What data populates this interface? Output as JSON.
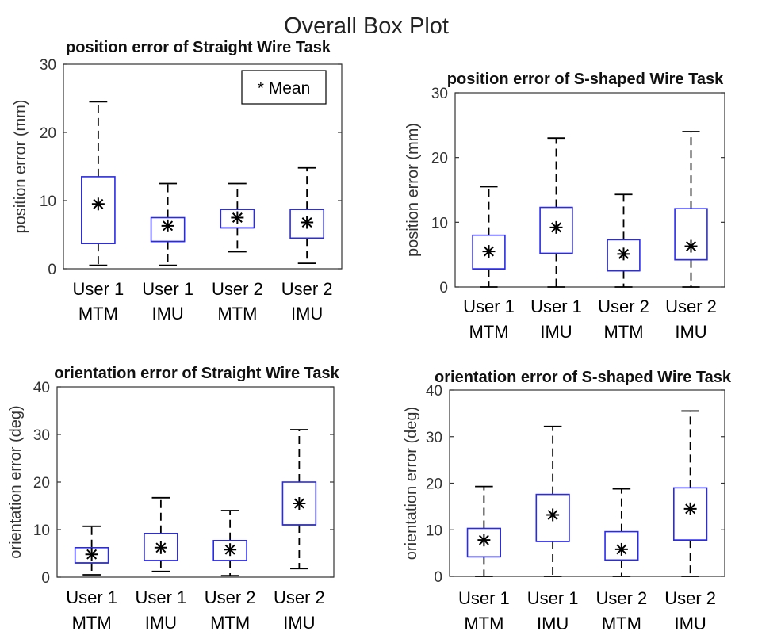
{
  "figure_title": "Overall Box Plot",
  "legend_text": "* Mean",
  "chart_data": [
    {
      "type": "box",
      "title": "position error of Straight Wire Task",
      "ylabel": "position error (mm)",
      "ylim": [
        0,
        30
      ],
      "yticks": [
        0,
        10,
        20,
        30
      ],
      "categories": [
        [
          "User 1",
          "MTM"
        ],
        [
          "User 1",
          "IMU"
        ],
        [
          "User 2",
          "MTM"
        ],
        [
          "User 2",
          "IMU"
        ]
      ],
      "boxes": [
        {
          "whisker_low": 0.5,
          "q1": 3.7,
          "median": 3.7,
          "q3": 13.5,
          "whisker_high": 24.5,
          "mean": 9.5
        },
        {
          "whisker_low": 0.5,
          "q1": 4.0,
          "median": 4.0,
          "q3": 7.5,
          "whisker_high": 12.5,
          "mean": 6.3
        },
        {
          "whisker_low": 2.5,
          "q1": 6.0,
          "median": 6.0,
          "q3": 8.7,
          "whisker_high": 12.5,
          "mean": 7.5
        },
        {
          "whisker_low": 0.8,
          "q1": 4.5,
          "median": 4.5,
          "q3": 8.7,
          "whisker_high": 14.8,
          "mean": 6.8
        }
      ]
    },
    {
      "type": "box",
      "title": "position error of S-shaped Wire Task",
      "ylabel": "position error (mm)",
      "ylim": [
        0,
        30
      ],
      "yticks": [
        0,
        10,
        20,
        30
      ],
      "categories": [
        [
          "User 1",
          "MTM"
        ],
        [
          "User 1",
          "IMU"
        ],
        [
          "User 2",
          "MTM"
        ],
        [
          "User 2",
          "IMU"
        ]
      ],
      "boxes": [
        {
          "whisker_low": 0,
          "q1": 2.8,
          "median": 2.8,
          "q3": 8.0,
          "whisker_high": 15.5,
          "mean": 5.5
        },
        {
          "whisker_low": 0,
          "q1": 5.2,
          "median": 5.2,
          "q3": 12.3,
          "whisker_high": 23.0,
          "mean": 9.2
        },
        {
          "whisker_low": 0,
          "q1": 2.5,
          "median": 2.5,
          "q3": 7.3,
          "whisker_high": 14.3,
          "mean": 5.1
        },
        {
          "whisker_low": 0,
          "q1": 4.2,
          "median": 4.2,
          "q3": 12.1,
          "whisker_high": 24.0,
          "mean": 6.3
        }
      ]
    },
    {
      "type": "box",
      "title": "orientation error of Straight Wire Task",
      "ylabel": "orientation error (deg)",
      "ylim": [
        0,
        40
      ],
      "yticks": [
        0,
        10,
        20,
        30,
        40
      ],
      "categories": [
        [
          "User 1",
          "MTM"
        ],
        [
          "User 1",
          "IMU"
        ],
        [
          "User 2",
          "MTM"
        ],
        [
          "User 2",
          "IMU"
        ]
      ],
      "boxes": [
        {
          "whisker_low": 0.5,
          "q1": 3.0,
          "median": 3.0,
          "q3": 6.2,
          "whisker_high": 10.7,
          "mean": 4.8
        },
        {
          "whisker_low": 1.2,
          "q1": 3.5,
          "median": 3.5,
          "q3": 9.2,
          "whisker_high": 16.7,
          "mean": 6.2
        },
        {
          "whisker_low": 0.3,
          "q1": 3.5,
          "median": 3.5,
          "q3": 7.7,
          "whisker_high": 14.0,
          "mean": 5.8
        },
        {
          "whisker_low": 1.8,
          "q1": 11.0,
          "median": 11.0,
          "q3": 20.0,
          "whisker_high": 31.0,
          "mean": 15.5
        }
      ]
    },
    {
      "type": "box",
      "title": "orientation error of S-shaped Wire Task",
      "ylabel": "orientation error (deg)",
      "ylim": [
        0,
        40
      ],
      "yticks": [
        0,
        10,
        20,
        30,
        40
      ],
      "categories": [
        [
          "User 1",
          "MTM"
        ],
        [
          "User 1",
          "IMU"
        ],
        [
          "User 2",
          "MTM"
        ],
        [
          "User 2",
          "IMU"
        ]
      ],
      "boxes": [
        {
          "whisker_low": 0,
          "q1": 4.2,
          "median": 4.2,
          "q3": 10.3,
          "whisker_high": 19.3,
          "mean": 7.8
        },
        {
          "whisker_low": 0,
          "q1": 7.5,
          "median": 7.5,
          "q3": 17.6,
          "whisker_high": 32.2,
          "mean": 13.2
        },
        {
          "whisker_low": 0,
          "q1": 3.5,
          "median": 3.5,
          "q3": 9.6,
          "whisker_high": 18.8,
          "mean": 5.8
        },
        {
          "whisker_low": 0,
          "q1": 7.8,
          "median": 7.8,
          "q3": 19.0,
          "whisker_high": 35.5,
          "mean": 14.5
        }
      ]
    }
  ]
}
